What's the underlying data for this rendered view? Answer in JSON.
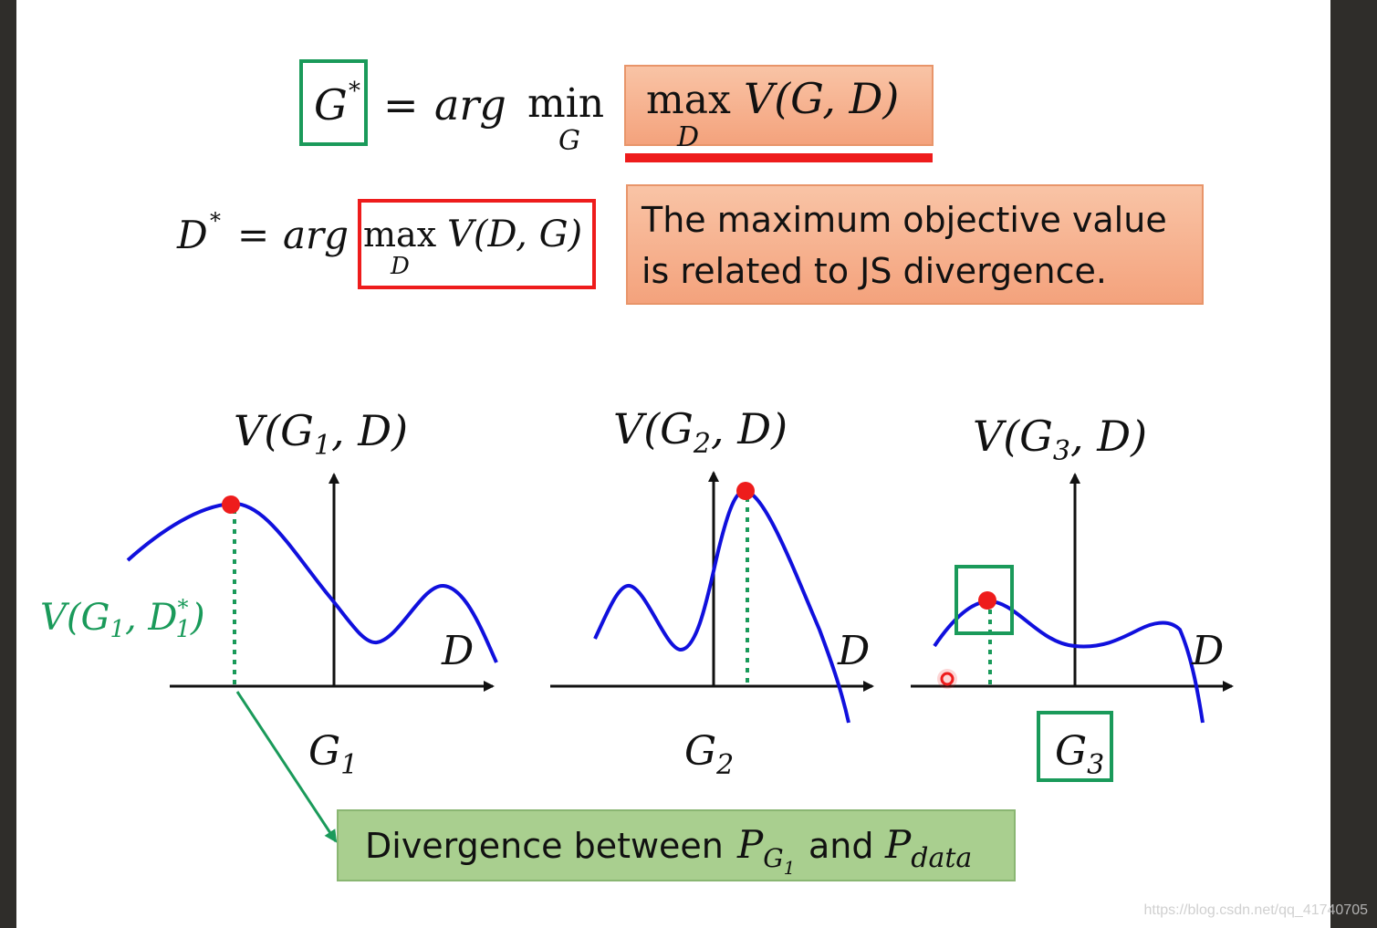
{
  "equations": {
    "g_star": {
      "lhs": "G",
      "lhs_sup": "*",
      "eq": "=",
      "arg": "arg",
      "min": "min",
      "min_sub": "G",
      "boxed": {
        "max": "max",
        "max_sub": "D",
        "func": "V(G, D)"
      }
    },
    "d_star": {
      "lhs": "D",
      "lhs_sup": "*",
      "eq": "=",
      "arg": "arg",
      "boxed": {
        "max": "max",
        "max_sub": "D",
        "func": "V(D, G)"
      }
    }
  },
  "callouts": {
    "js": {
      "line1": "The maximum objective value",
      "line2": "is related to JS divergence."
    },
    "divergence": {
      "text": "Divergence between",
      "p1": "P",
      "p1_sub": "G",
      "p1_subsub": "1",
      "and": "and",
      "p2": "P",
      "p2_sub": "data"
    }
  },
  "graphs": [
    {
      "title_v": "V(G",
      "title_sub": "1",
      "title_rest": ", D)",
      "axis_label": "D",
      "g_label": "G",
      "g_sub": "1"
    },
    {
      "title_v": "V(G",
      "title_sub": "2",
      "title_rest": ", D)",
      "axis_label": "D",
      "g_label": "G",
      "g_sub": "2"
    },
    {
      "title_v": "V(G",
      "title_sub": "3",
      "title_rest": ", D)",
      "axis_label": "D",
      "g_label": "G",
      "g_sub": "3"
    }
  ],
  "annotation": {
    "v": "V(G",
    "sub1": "1",
    "mid": ", D",
    "sup": "*",
    "sub2": "1",
    "end": ")"
  },
  "watermark": "https://blog.csdn.net/qq_41740705",
  "colors": {
    "green": "#1a9a5a",
    "red": "#ee1c1c",
    "blue": "#1010dd",
    "orange_fill": "#f6b08c",
    "green_fill": "#a9cf8f",
    "slide_bg": "#ffffff",
    "frame": "#2f2d2a"
  }
}
